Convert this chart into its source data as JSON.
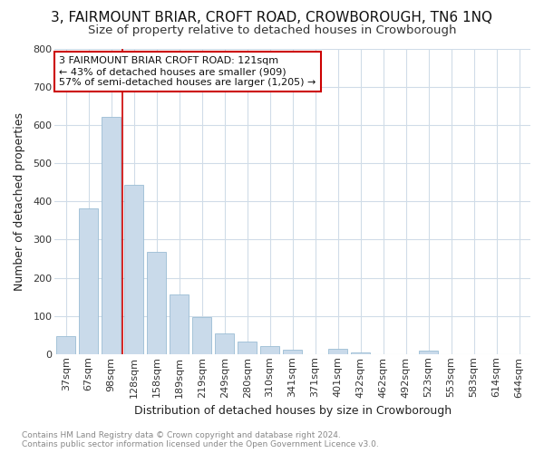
{
  "title": "3, FAIRMOUNT BRIAR, CROFT ROAD, CROWBOROUGH, TN6 1NQ",
  "subtitle": "Size of property relative to detached houses in Crowborough",
  "xlabel": "Distribution of detached houses by size in Crowborough",
  "ylabel": "Number of detached properties",
  "categories": [
    "37sqm",
    "67sqm",
    "98sqm",
    "128sqm",
    "158sqm",
    "189sqm",
    "219sqm",
    "249sqm",
    "280sqm",
    "310sqm",
    "341sqm",
    "371sqm",
    "401sqm",
    "432sqm",
    "462sqm",
    "492sqm",
    "523sqm",
    "553sqm",
    "583sqm",
    "614sqm",
    "644sqm"
  ],
  "values": [
    48,
    383,
    622,
    443,
    268,
    156,
    97,
    54,
    32,
    21,
    11,
    0,
    13,
    5,
    0,
    0,
    9,
    0,
    0,
    0,
    0
  ],
  "bar_color": "#c9daea",
  "bar_edge_color": "#9bbdd4",
  "vline_x": 3,
  "vline_color": "#cc0000",
  "annotation_text": "3 FAIRMOUNT BRIAR CROFT ROAD: 121sqm\n← 43% of detached houses are smaller (909)\n57% of semi-detached houses are larger (1,205) →",
  "annotation_box_facecolor": "#ffffff",
  "annotation_box_edgecolor": "#cc0000",
  "ylim": [
    0,
    800
  ],
  "yticks": [
    0,
    100,
    200,
    300,
    400,
    500,
    600,
    700,
    800
  ],
  "footer": "Contains HM Land Registry data © Crown copyright and database right 2024.\nContains public sector information licensed under the Open Government Licence v3.0.",
  "background_color": "#ffffff",
  "grid_color": "#d0dce8",
  "title_fontsize": 11,
  "subtitle_fontsize": 9.5,
  "axis_label_fontsize": 9,
  "tick_fontsize": 8,
  "annotation_fontsize": 8,
  "footer_fontsize": 6.5
}
